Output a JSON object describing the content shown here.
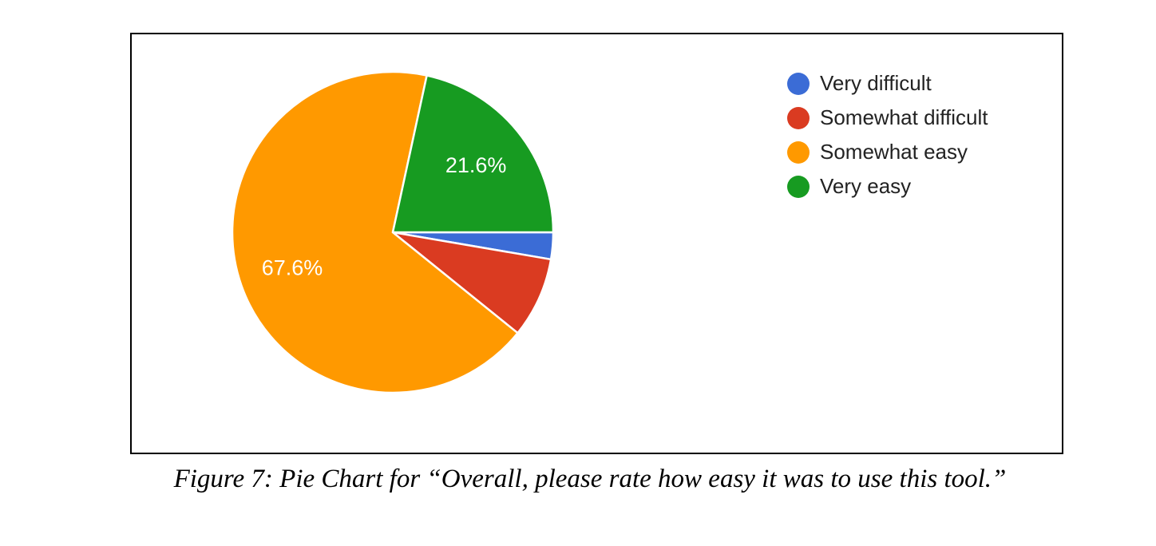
{
  "figure": {
    "caption": "Figure 7: Pie Chart for “Overall, please rate how easy it was to use this tool.”"
  },
  "chart_data": {
    "type": "pie",
    "question": "Overall, please rate how easy it was to use this tool.",
    "start_angle_deg": 90,
    "direction": "clockwise",
    "legend_position": "right",
    "background_color": "#FFFFFF",
    "data_label_color": "#FFFFFF",
    "separator_color": "#FFFFFF",
    "slices": [
      {
        "label": "Very difficult",
        "value": 2.7,
        "color": "#3B6CD6",
        "data_label": ""
      },
      {
        "label": "Somewhat difficult",
        "value": 8.1,
        "color": "#DA3B21",
        "data_label": ""
      },
      {
        "label": "Somewhat easy",
        "value": 67.6,
        "color": "#FF9900",
        "data_label": "67.6%"
      },
      {
        "label": "Very easy",
        "value": 21.6,
        "color": "#179B21",
        "data_label": "21.6%"
      }
    ]
  }
}
